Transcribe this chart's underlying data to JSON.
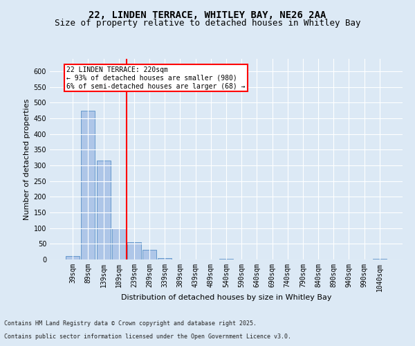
{
  "title1": "22, LINDEN TERRACE, WHITLEY BAY, NE26 2AA",
  "title2": "Size of property relative to detached houses in Whitley Bay",
  "xlabel": "Distribution of detached houses by size in Whitley Bay",
  "ylabel": "Number of detached properties",
  "categories": [
    "39sqm",
    "89sqm",
    "139sqm",
    "189sqm",
    "239sqm",
    "289sqm",
    "339sqm",
    "389sqm",
    "439sqm",
    "489sqm",
    "540sqm",
    "590sqm",
    "640sqm",
    "690sqm",
    "740sqm",
    "790sqm",
    "840sqm",
    "890sqm",
    "940sqm",
    "990sqm",
    "1040sqm"
  ],
  "values": [
    10,
    475,
    315,
    100,
    55,
    30,
    5,
    0,
    0,
    0,
    2,
    0,
    0,
    0,
    0,
    0,
    0,
    0,
    0,
    0,
    2
  ],
  "bar_color": "#aec6e8",
  "bar_edge_color": "#6699cc",
  "red_line_x": 3.5,
  "ylim": [
    0,
    640
  ],
  "yticks": [
    0,
    50,
    100,
    150,
    200,
    250,
    300,
    350,
    400,
    450,
    500,
    550,
    600
  ],
  "annotation_text": "22 LINDEN TERRACE: 220sqm\n← 93% of detached houses are smaller (980)\n6% of semi-detached houses are larger (68) →",
  "bg_color": "#dce9f5",
  "footer1": "Contains HM Land Registry data © Crown copyright and database right 2025.",
  "footer2": "Contains public sector information licensed under the Open Government Licence v3.0.",
  "title_fontsize": 10,
  "subtitle_fontsize": 9,
  "axis_label_fontsize": 8,
  "tick_fontsize": 7,
  "footer_fontsize": 6
}
